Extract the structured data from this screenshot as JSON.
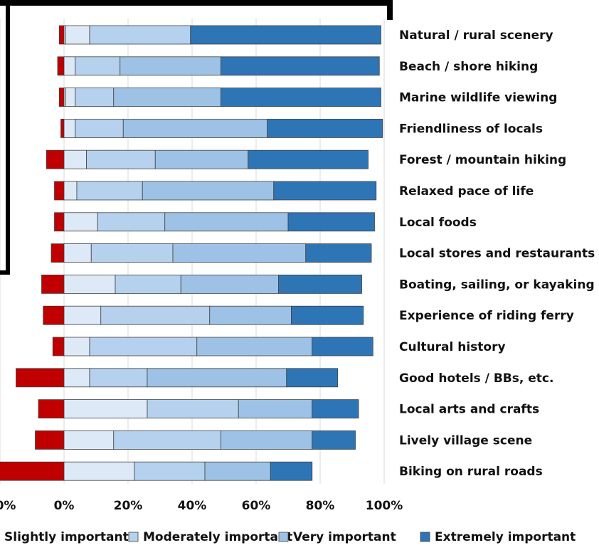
{
  "chart_data": {
    "type": "bar",
    "orientation": "horizontal-stacked",
    "title": "",
    "xlabel": "",
    "ylabel": "",
    "xlim": [
      -20,
      100
    ],
    "tick_labels": [
      "0%",
      "20%",
      "40%",
      "60%",
      "80%",
      "100%"
    ],
    "partial_tick_label": "0%",
    "grid": true,
    "legend_position": "bottom",
    "categories": [
      "Natural / rural scenery",
      "Beach / shore hiking",
      "Marine wildlife viewing",
      "Friendliness of locals",
      "Forest / mountain hiking",
      "Relaxed pace of life",
      "Local foods",
      "Local stores and restaurants",
      "Boating, sailing, or kayaking",
      "Experience of riding ferry",
      "Cultural history",
      "Good hotels / BBs, etc.",
      "Local arts and crafts",
      "Lively village scene",
      "Biking on rural roads"
    ],
    "series": [
      {
        "name": "",
        "color": "#c00000",
        "direction": "negative",
        "values": [
          1.5,
          2,
          1.5,
          1,
          5.5,
          3,
          3,
          4,
          7,
          6.5,
          3.5,
          15,
          8,
          9,
          25
        ]
      },
      {
        "name": "Slightly important",
        "color": "#e4eef8",
        "values": [
          0.5,
          0,
          0.5,
          0,
          0,
          0,
          0,
          0,
          0,
          0,
          0,
          0,
          0,
          0,
          0
        ]
      },
      {
        "name": "Moderately important",
        "color": "#dde9f6",
        "values": [
          7.5,
          3.5,
          3,
          3.5,
          7,
          4,
          10.5,
          8.5,
          16,
          11.5,
          8,
          8,
          26,
          15.5,
          22
        ]
      },
      {
        "name": "Very important",
        "color": "#b5d1ee",
        "values": [
          31.5,
          14,
          12,
          15,
          21.5,
          20.5,
          21,
          25.5,
          20.5,
          34,
          33.5,
          18,
          28.5,
          33.5,
          22
        ]
      },
      {
        "name": "Very important 2",
        "color": "#9dc2e5",
        "values": [
          0,
          31.5,
          33.5,
          45,
          29,
          41,
          38.5,
          41.5,
          30.5,
          25.5,
          36,
          43.5,
          23,
          28.5,
          20.5
        ]
      },
      {
        "name": "Extremely important",
        "color": "#2e75b6",
        "values": [
          59.5,
          49.5,
          50,
          36,
          37.5,
          32,
          27,
          20.5,
          26,
          22.5,
          19,
          16,
          14.5,
          13.5,
          13
        ]
      }
    ],
    "legend": [
      {
        "label": "Slightly important",
        "color": "#e4eef8"
      },
      {
        "label": "Moderately important",
        "color": "#b5d1ee"
      },
      {
        "label": "Very important",
        "color": "#9dc2e5"
      },
      {
        "label": "Extremely important",
        "color": "#2e75b6"
      }
    ]
  }
}
